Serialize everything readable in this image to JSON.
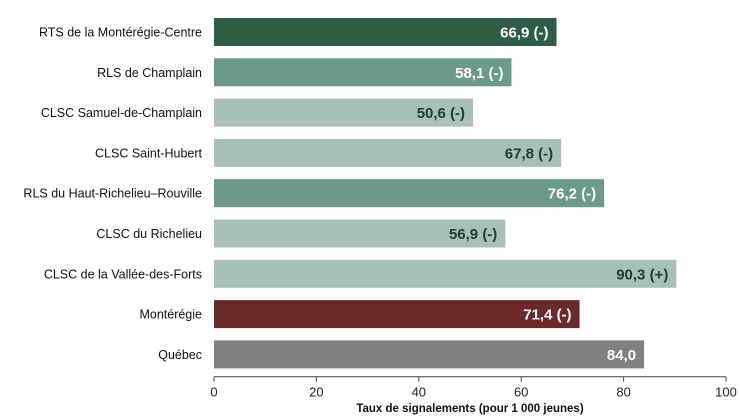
{
  "chart_data": {
    "type": "bar",
    "orientation": "horizontal",
    "title": "",
    "xlabel": "Taux de signalements (pour 1 000 jeunes)",
    "ylabel": "",
    "xlim": [
      0,
      100
    ],
    "xticks": [
      "0",
      "20",
      "40",
      "60",
      "80",
      "100"
    ],
    "grid": false,
    "legend": "none",
    "categories": [
      "RTS de la Montérégie-Centre",
      "RLS de Champlain",
      "CLSC Samuel-de-Champlain",
      "CLSC Saint-Hubert",
      "RLS du Haut-Richelieu–Rouville",
      "CLSC du Richelieu",
      "CLSC de la Vallée-des-Forts",
      "Montérégie",
      "Québec"
    ],
    "values": [
      66.9,
      58.1,
      50.6,
      67.8,
      76.2,
      56.9,
      90.3,
      71.4,
      84.0
    ],
    "data_labels": [
      "66,9 (-)",
      "58,1 (-)",
      "50,6 (-)",
      "67,8 (-)",
      "76,2 (-)",
      "56,9 (-)",
      "90,3 (+)",
      "71,4 (-)",
      "84,0"
    ],
    "bar_colors": [
      "#2f5c45",
      "#6b9a8c",
      "#a9c0b8",
      "#a9c0b8",
      "#6b9a8c",
      "#a9c0b8",
      "#a9c0b8",
      "#6b2a2a",
      "#808080"
    ],
    "label_colors": [
      "#ffffff",
      "#ffffff",
      "#223a30",
      "#223a30",
      "#ffffff",
      "#223a30",
      "#223a30",
      "#ffffff",
      "#ffffff"
    ]
  }
}
